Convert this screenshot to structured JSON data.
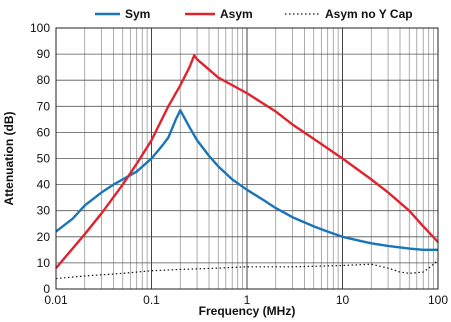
{
  "chart_data": {
    "type": "line",
    "xlabel": "Frequency (MHz)",
    "ylabel": "Attenuation (dB)",
    "xscale": "log",
    "xlim": [
      0.01,
      100
    ],
    "ylim": [
      0,
      100
    ],
    "grid": true,
    "legend_position": "top",
    "x_ticks": [
      {
        "value": 0.01,
        "label": "0.01"
      },
      {
        "value": 0.1,
        "label": "0.1"
      },
      {
        "value": 1,
        "label": "1"
      },
      {
        "value": 10,
        "label": "10"
      },
      {
        "value": 100,
        "label": "100"
      }
    ],
    "y_ticks": [
      {
        "value": 0,
        "label": "0"
      },
      {
        "value": 10,
        "label": "10"
      },
      {
        "value": 20,
        "label": "20"
      },
      {
        "value": 30,
        "label": "30"
      },
      {
        "value": 40,
        "label": "40"
      },
      {
        "value": 50,
        "label": "50"
      },
      {
        "value": 60,
        "label": "60"
      },
      {
        "value": 70,
        "label": "70"
      },
      {
        "value": 80,
        "label": "80"
      },
      {
        "value": 90,
        "label": "90"
      },
      {
        "value": 100,
        "label": "100"
      }
    ],
    "series": [
      {
        "name": "Sym",
        "color": "#1a75b8",
        "style": "solid",
        "points": [
          [
            0.01,
            22
          ],
          [
            0.015,
            27
          ],
          [
            0.02,
            32
          ],
          [
            0.03,
            37
          ],
          [
            0.04,
            40
          ],
          [
            0.05,
            42
          ],
          [
            0.07,
            45
          ],
          [
            0.1,
            50
          ],
          [
            0.13,
            55
          ],
          [
            0.15,
            58
          ],
          [
            0.18,
            65
          ],
          [
            0.2,
            68.5
          ],
          [
            0.25,
            62
          ],
          [
            0.3,
            57
          ],
          [
            0.4,
            51
          ],
          [
            0.5,
            47
          ],
          [
            0.7,
            42
          ],
          [
            1,
            38
          ],
          [
            1.5,
            34
          ],
          [
            2,
            31
          ],
          [
            3,
            27.5
          ],
          [
            5,
            24
          ],
          [
            7,
            22
          ],
          [
            10,
            20
          ],
          [
            15,
            18.5
          ],
          [
            20,
            17.5
          ],
          [
            30,
            16.5
          ],
          [
            50,
            15.5
          ],
          [
            70,
            15
          ],
          [
            100,
            15
          ]
        ]
      },
      {
        "name": "Asym",
        "color": "#e0242f",
        "style": "solid",
        "points": [
          [
            0.01,
            8
          ],
          [
            0.02,
            21
          ],
          [
            0.03,
            29
          ],
          [
            0.05,
            40
          ],
          [
            0.07,
            48
          ],
          [
            0.1,
            57
          ],
          [
            0.15,
            70
          ],
          [
            0.2,
            78
          ],
          [
            0.25,
            85
          ],
          [
            0.28,
            89.5
          ],
          [
            0.3,
            88
          ],
          [
            0.5,
            81
          ],
          [
            1,
            75
          ],
          [
            2,
            68
          ],
          [
            3,
            63
          ],
          [
            5,
            57.5
          ],
          [
            10,
            50
          ],
          [
            20,
            42
          ],
          [
            30,
            37
          ],
          [
            50,
            30
          ],
          [
            70,
            24
          ],
          [
            100,
            18
          ]
        ]
      },
      {
        "name": "Asym no Y Cap",
        "color": "#111111",
        "style": "dotted",
        "points": [
          [
            0.01,
            4
          ],
          [
            0.02,
            5
          ],
          [
            0.05,
            6
          ],
          [
            0.1,
            7
          ],
          [
            0.2,
            7.5
          ],
          [
            0.5,
            8
          ],
          [
            1,
            8.5
          ],
          [
            3,
            8.5
          ],
          [
            10,
            9
          ],
          [
            20,
            9.5
          ],
          [
            30,
            8
          ],
          [
            40,
            6.5
          ],
          [
            50,
            6
          ],
          [
            70,
            6.5
          ],
          [
            80,
            8
          ],
          [
            100,
            11
          ]
        ]
      }
    ]
  }
}
